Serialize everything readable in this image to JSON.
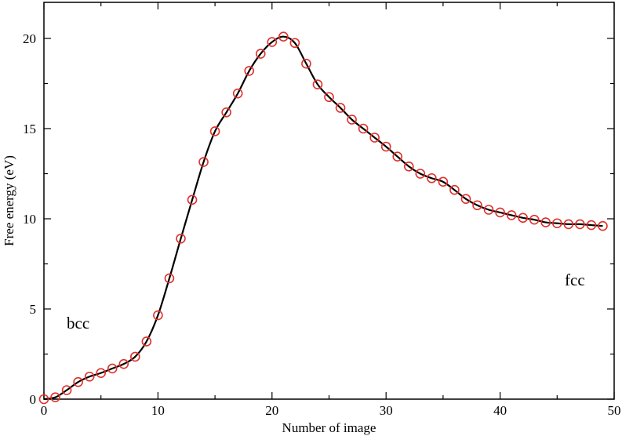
{
  "chart_data": {
    "type": "line",
    "title": "",
    "xlabel": "Number of image",
    "ylabel": "Free energy (eV)",
    "xlim": [
      0,
      50
    ],
    "ylim": [
      0,
      22
    ],
    "xticks": [
      0,
      10,
      20,
      30,
      40,
      50
    ],
    "yticks": [
      0,
      5,
      10,
      15,
      20
    ],
    "grid": false,
    "annotations": [
      "bcc",
      "fcc"
    ],
    "colors": {
      "line": "#000000",
      "markers": "#e0302a"
    },
    "series": [
      {
        "style": "line+open-circle-markers",
        "x": [
          0,
          1,
          2,
          3,
          4,
          5,
          6,
          7,
          8,
          9,
          10,
          11,
          12,
          13,
          14,
          15,
          16,
          17,
          18,
          19,
          20,
          21,
          22,
          23,
          24,
          25,
          26,
          27,
          28,
          29,
          30,
          31,
          32,
          33,
          34,
          35,
          36,
          37,
          38,
          39,
          40,
          41,
          42,
          43,
          44,
          45,
          46,
          47,
          48,
          49
        ],
        "y": [
          0,
          0.1,
          0.5,
          0.95,
          1.25,
          1.45,
          1.7,
          1.95,
          2.35,
          3.2,
          4.65,
          6.7,
          8.9,
          11.05,
          13.15,
          14.85,
          15.9,
          16.95,
          18.2,
          19.15,
          19.8,
          20.1,
          19.75,
          18.6,
          17.45,
          16.75,
          16.15,
          15.5,
          15,
          14.5,
          14,
          13.45,
          12.9,
          12.5,
          12.25,
          12.05,
          11.6,
          11.1,
          10.75,
          10.5,
          10.35,
          10.2,
          10.05,
          9.95,
          9.8,
          9.75,
          9.7,
          9.7,
          9.65,
          9.6
        ]
      }
    ]
  }
}
